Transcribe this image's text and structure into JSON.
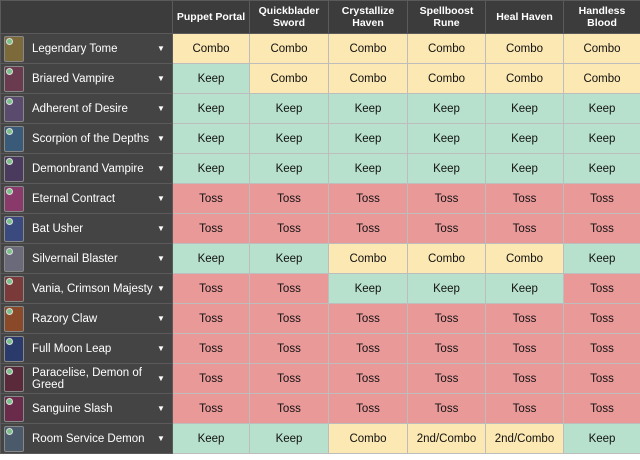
{
  "columns": [
    "Puppet Portal",
    "Quickblader Sword",
    "Crystallize Haven",
    "Spellboost Rune",
    "Heal Haven",
    "Handless Blood"
  ],
  "colors": {
    "Combo": "#fce8b2",
    "Keep": "#b7e1cd",
    "Toss": "#ea9999",
    "2nd/Combo": "#fce8b2"
  },
  "rows": [
    {
      "card": "Legendary Tome",
      "thumb": "#7d6a3a",
      "gem": "#7cc08a",
      "values": [
        "Combo",
        "Combo",
        "Combo",
        "Combo",
        "Combo",
        "Combo"
      ]
    },
    {
      "card": "Briared Vampire",
      "thumb": "#6a3a4e",
      "gem": "#7cc08a",
      "values": [
        "Keep",
        "Combo",
        "Combo",
        "Combo",
        "Combo",
        "Combo"
      ]
    },
    {
      "card": "Adherent of Desire",
      "thumb": "#5a4a6e",
      "gem": "#7cc08a",
      "values": [
        "Keep",
        "Keep",
        "Keep",
        "Keep",
        "Keep",
        "Keep"
      ]
    },
    {
      "card": "Scorpion of the Depths",
      "thumb": "#3a5a7a",
      "gem": "#7cc08a",
      "values": [
        "Keep",
        "Keep",
        "Keep",
        "Keep",
        "Keep",
        "Keep"
      ]
    },
    {
      "card": "Demonbrand Vampire",
      "thumb": "#4a3a5e",
      "gem": "#7cc08a",
      "values": [
        "Keep",
        "Keep",
        "Keep",
        "Keep",
        "Keep",
        "Keep"
      ]
    },
    {
      "card": "Eternal Contract",
      "thumb": "#8a3a6a",
      "gem": "#7cc08a",
      "values": [
        "Toss",
        "Toss",
        "Toss",
        "Toss",
        "Toss",
        "Toss"
      ]
    },
    {
      "card": "Bat Usher",
      "thumb": "#3a4a7e",
      "gem": "#7cc08a",
      "values": [
        "Toss",
        "Toss",
        "Toss",
        "Toss",
        "Toss",
        "Toss"
      ]
    },
    {
      "card": "Silvernail Blaster",
      "thumb": "#6a6a7a",
      "gem": "#7cc08a",
      "values": [
        "Keep",
        "Keep",
        "Combo",
        "Combo",
        "Combo",
        "Keep"
      ]
    },
    {
      "card": "Vania, Crimson Majesty",
      "thumb": "#7a3a3a",
      "gem": "#7cc08a",
      "values": [
        "Toss",
        "Toss",
        "Keep",
        "Keep",
        "Keep",
        "Toss"
      ]
    },
    {
      "card": "Razory Claw",
      "thumb": "#8a4a2a",
      "gem": "#7cc08a",
      "values": [
        "Toss",
        "Toss",
        "Toss",
        "Toss",
        "Toss",
        "Toss"
      ]
    },
    {
      "card": "Full Moon Leap",
      "thumb": "#2a3a6a",
      "gem": "#7cc08a",
      "values": [
        "Toss",
        "Toss",
        "Toss",
        "Toss",
        "Toss",
        "Toss"
      ]
    },
    {
      "card": "Paracelise, Demon of Greed",
      "thumb": "#5a2a3a",
      "gem": "#7cc08a",
      "values": [
        "Toss",
        "Toss",
        "Toss",
        "Toss",
        "Toss",
        "Toss"
      ]
    },
    {
      "card": "Sanguine Slash",
      "thumb": "#6a2a4a",
      "gem": "#7cc08a",
      "values": [
        "Toss",
        "Toss",
        "Toss",
        "Toss",
        "Toss",
        "Toss"
      ]
    },
    {
      "card": "Room Service Demon",
      "thumb": "#4a5a6a",
      "gem": "#7cc08a",
      "values": [
        "Keep",
        "Keep",
        "Combo",
        "2nd/Combo",
        "2nd/Combo",
        "Keep"
      ]
    }
  ]
}
